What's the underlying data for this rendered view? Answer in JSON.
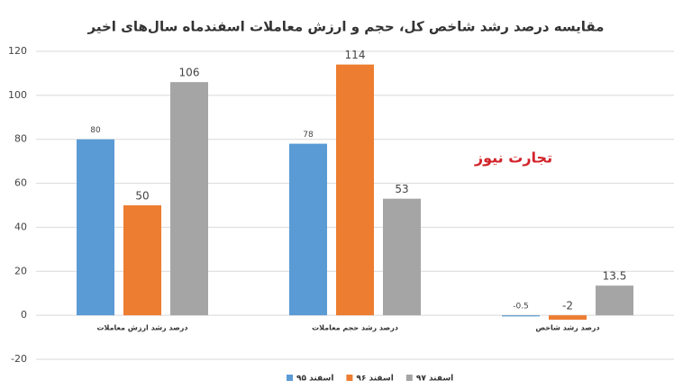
{
  "chart_data": {
    "type": "bar",
    "title": "مقایسه درصد رشد شاخص کل، حجم و ارزش معاملات اسفندماه سال‌های اخیر",
    "watermark": "تجارت نیوز",
    "categories": [
      "درصد رشد ارزش معاملات",
      "درصد رشد حجم معاملات",
      "درصد رشد شاخص"
    ],
    "series": [
      {
        "name": "اسفند ۹۵",
        "color": "#5b9bd5",
        "values": [
          80,
          78,
          -0.5
        ]
      },
      {
        "name": "اسفند ۹۶",
        "color": "#ed7d31",
        "values": [
          50,
          114,
          -2
        ]
      },
      {
        "name": "اسفند ۹۷",
        "color": "#a5a5a5",
        "values": [
          106,
          53,
          13.5
        ]
      }
    ],
    "ylim": [
      -20,
      120
    ],
    "yticks": [
      -20,
      0,
      20,
      40,
      60,
      80,
      100,
      120
    ],
    "grid": true,
    "legend": "bottom"
  }
}
